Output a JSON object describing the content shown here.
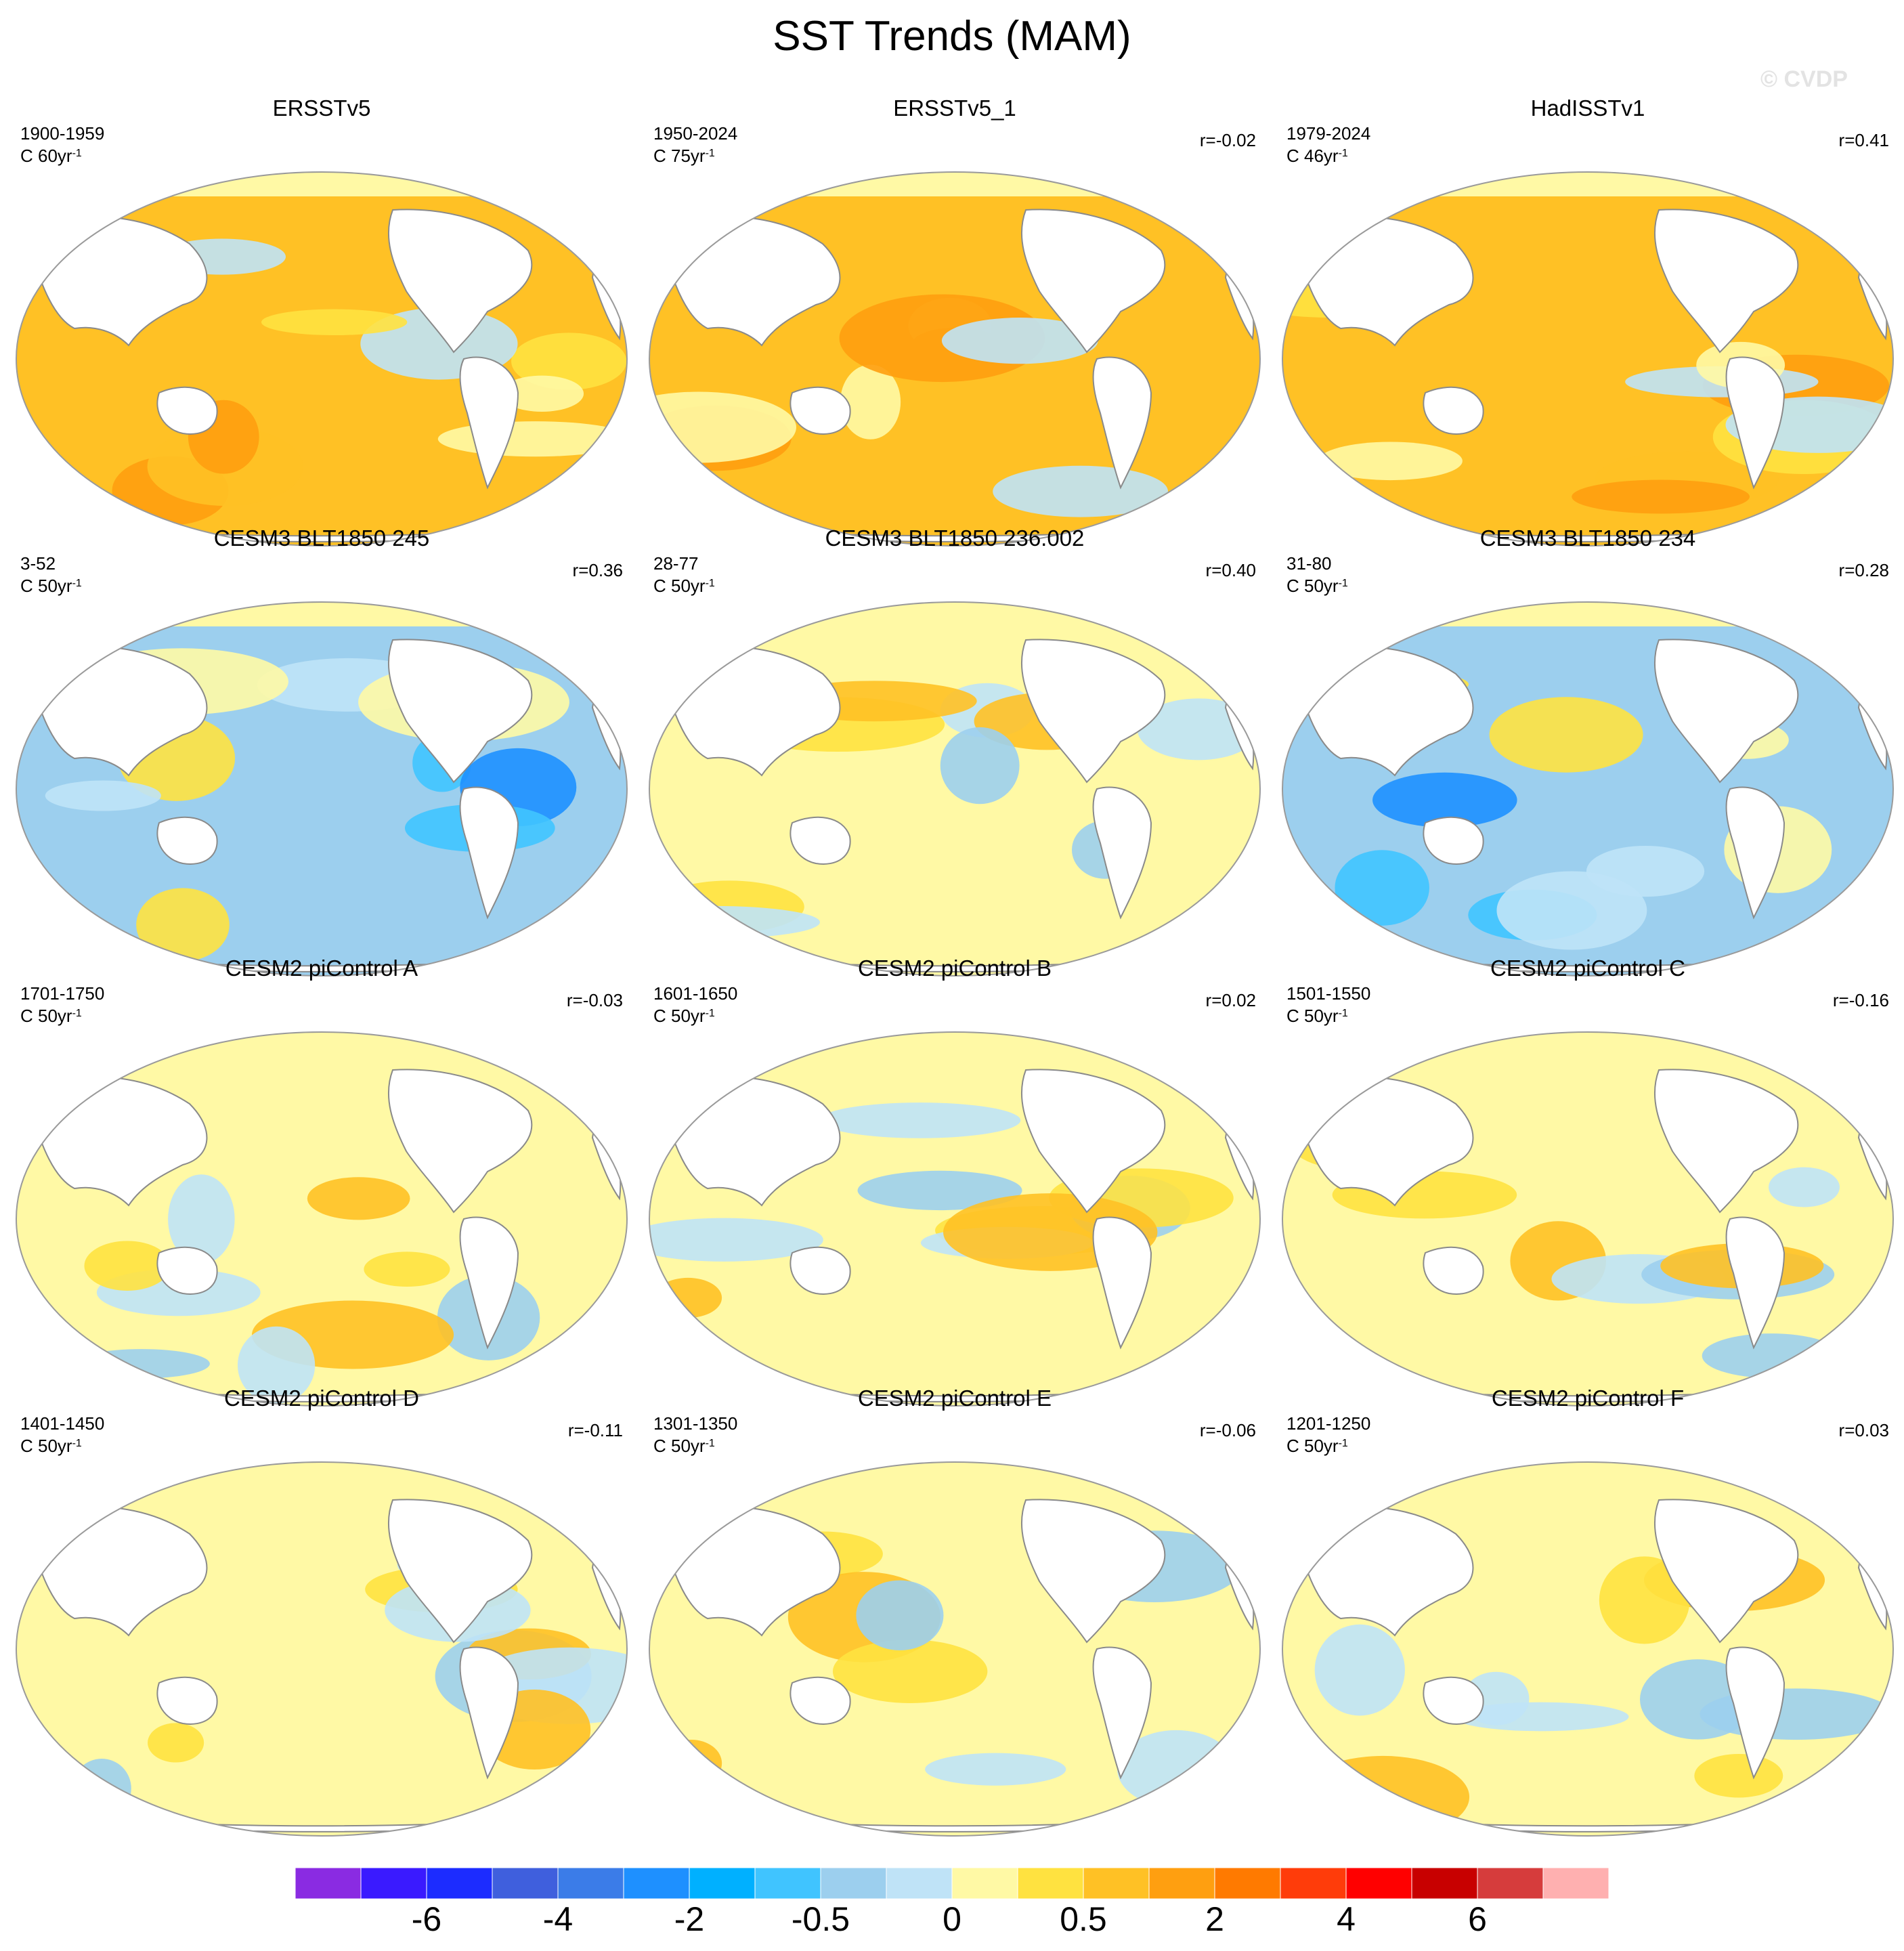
{
  "title": "SST Trends (MAM)",
  "watermark": "© CVDP",
  "units_prefix": "C",
  "units_exponent": "-1",
  "panels": [
    {
      "title": "ERSSTv5",
      "period": "1900-1959",
      "units": "60yr",
      "r": "",
      "tint": "warm"
    },
    {
      "title": "ERSSTv5_1",
      "period": "1950-2024",
      "units": "75yr",
      "r": "r=-0.02",
      "tint": "warm"
    },
    {
      "title": "HadISSTv1",
      "period": "1979-2024",
      "units": "46yr",
      "r": "r=0.41",
      "tint": "warm"
    },
    {
      "title": "CESM3 BLT1850 245",
      "period": "3-52",
      "units": "50yr",
      "r": "r=0.36",
      "tint": "cool"
    },
    {
      "title": "CESM3 BLT1850 236.002",
      "period": "28-77",
      "units": "50yr",
      "r": "r=0.40",
      "tint": "mixed"
    },
    {
      "title": "CESM3 BLT1850 234",
      "period": "31-80",
      "units": "50yr",
      "r": "r=0.28",
      "tint": "cool"
    },
    {
      "title": "CESM2 piControl A",
      "period": "1701-1750",
      "units": "50yr",
      "r": "r=-0.03",
      "tint": "mixed"
    },
    {
      "title": "CESM2 piControl B",
      "period": "1601-1650",
      "units": "50yr",
      "r": "r=0.02",
      "tint": "mixed"
    },
    {
      "title": "CESM2 piControl C",
      "period": "1501-1550",
      "units": "50yr",
      "r": "r=-0.16",
      "tint": "mixed"
    },
    {
      "title": "CESM2 piControl D",
      "period": "1401-1450",
      "units": "50yr",
      "r": "r=-0.11",
      "tint": "mixed"
    },
    {
      "title": "CESM2 piControl E",
      "period": "1301-1350",
      "units": "50yr",
      "r": "r=-0.06",
      "tint": "mixed"
    },
    {
      "title": "CESM2 piControl F",
      "period": "1201-1250",
      "units": "50yr",
      "r": "r=0.03",
      "tint": "mixed"
    }
  ],
  "colorbar": {
    "colors": [
      "#8a2be2",
      "#3a1aff",
      "#1c2cff",
      "#3f5fdd",
      "#3b7ce8",
      "#1e90ff",
      "#00b0ff",
      "#40c4ff",
      "#9ccfee",
      "#bfe3f7",
      "#fff9a5",
      "#ffe240",
      "#ffc125",
      "#ff9f10",
      "#ff7a00",
      "#ff3c0a",
      "#ff0000",
      "#c80000",
      "#d63c3c",
      "#ffb0b0"
    ],
    "tick_labels": [
      "-6",
      "-4",
      "-2",
      "-0.5",
      "0",
      "0.5",
      "2",
      "4",
      "6"
    ],
    "tick_after_box": [
      2,
      4,
      6,
      8,
      10,
      12,
      14,
      16,
      18
    ]
  },
  "palette": {
    "land": "#ffffff",
    "coast": "#8a8a8a",
    "warm_base": "#ffc125",
    "mixed_base": "#fff9a5",
    "cool_base": "#9ccfee"
  }
}
